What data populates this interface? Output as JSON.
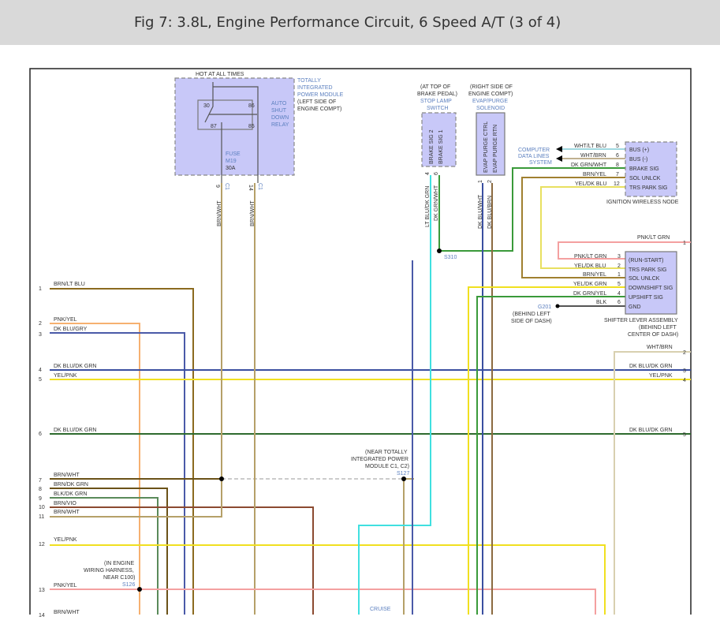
{
  "title": "Fig 7: 3.8L, Engine Performance Circuit, 6 Speed A/T (3 of 4)",
  "left_pins": [
    {
      "num": "1",
      "label": "BRN/LT BLU"
    },
    {
      "num": "2",
      "label": "PNK/YEL"
    },
    {
      "num": "3",
      "label": "DK BLU/GRY"
    },
    {
      "num": "4",
      "label": "DK BLU/DK GRN"
    },
    {
      "num": "5",
      "label": "YEL/PNK"
    },
    {
      "num": "6",
      "label": "DK BLU/DK GRN"
    },
    {
      "num": "7",
      "label": "BRN/WHT"
    },
    {
      "num": "8",
      "label": "BRN/DK GRN"
    },
    {
      "num": "9",
      "label": "BLK/DK GRN"
    },
    {
      "num": "10",
      "label": "BRN/VIO"
    },
    {
      "num": "11",
      "label": "BRN/WHT"
    },
    {
      "num": "12",
      "label": "YEL/PNK"
    },
    {
      "num": "13",
      "label": "PNK/YEL"
    },
    {
      "num": "14",
      "label": "BRN/WHT"
    }
  ],
  "right_pins": [
    {
      "num": "1",
      "label": "PNK/LT GRN"
    },
    {
      "num": "2",
      "label": "WHT/BRN"
    },
    {
      "num": "3",
      "label": "DK BLU/DK GRN"
    },
    {
      "num": "4",
      "label": "YEL/PNK"
    },
    {
      "num": "5",
      "label": "DK BLU/DK GRN"
    }
  ],
  "tipm": {
    "hot": "HOT AT ALL TIMES",
    "name": [
      "TOTALLY",
      "INTEGRATED",
      "POWER MODULE"
    ],
    "loc": [
      "(LEFT SIDE OF",
      "ENGINE COMPT)"
    ],
    "relay": [
      "AUTO",
      "SHUT",
      "DOWN",
      "RELAY"
    ],
    "pins": [
      "30",
      "86",
      "87",
      "85"
    ],
    "fuse": [
      "FUSE",
      "M19"
    ],
    "amps": "30A",
    "out": [
      {
        "num": "9",
        "conn": "C1",
        "wire": "BRN/WHT"
      },
      {
        "num": "14",
        "conn": "C1",
        "wire": "BRN/WHT"
      }
    ]
  },
  "stop_lamp": {
    "loc": [
      "(AT TOP OF",
      "BRAKE PEDAL)"
    ],
    "name": [
      "STOP LAMP",
      "SWITCH"
    ],
    "pins": [
      "BRAKE SIG 2",
      "BRAKE SIG 1"
    ],
    "nums": [
      "4",
      "6"
    ],
    "wires": [
      "LT BLU/DK GRN",
      "DK GRN/WHT"
    ]
  },
  "evap": {
    "loc": [
      "(RIGHT SIDE OF",
      "ENGINE COMPT)"
    ],
    "name": [
      "EVAP/PURGE",
      "SOLENOID"
    ],
    "pins": [
      "EVAP PURGE CTRL",
      "EVAP PURGE RTN"
    ],
    "nums": [
      "1",
      "2"
    ],
    "wires": [
      "DK BLU/WHT",
      "DK BLU/BRN"
    ]
  },
  "ign_node": {
    "name": "IGNITION WIRELESS NODE",
    "data_lines": [
      "COMPUTER",
      "DATA LINES",
      "SYSTEM"
    ],
    "pins": [
      {
        "num": "5",
        "wire": "WHT/LT BLU",
        "sig": "BUS (+)"
      },
      {
        "num": "6",
        "wire": "WHT/BRN",
        "sig": "BUS (-)"
      },
      {
        "num": "8",
        "wire": "DK GRN/WHT",
        "sig": "BRAKE SIG"
      },
      {
        "num": "7",
        "wire": "BRN/YEL",
        "sig": "SOL UNLCK"
      },
      {
        "num": "12",
        "wire": "YEL/DK BLU",
        "sig": "TRS PARK SIG"
      }
    ]
  },
  "shifter": {
    "name": [
      "SHIFTER LEVER ASSEMBLY",
      "(BEHIND LEFT",
      "CENTER OF DASH)"
    ],
    "pins": [
      {
        "num": "3",
        "wire": "PNK/LT GRN",
        "sig": "(RUN-START)"
      },
      {
        "num": "2",
        "wire": "YEL/DK BLU",
        "sig": "TRS PARK SIG"
      },
      {
        "num": "1",
        "wire": "BRN/YEL",
        "sig": "SOL UNLCK"
      },
      {
        "num": "5",
        "wire": "YEL/DK GRN",
        "sig": "DOWNSHIFT SIG"
      },
      {
        "num": "4",
        "wire": "DK GRN/YEL",
        "sig": "UPSHIFT SIG"
      },
      {
        "num": "6",
        "wire": "BLK",
        "sig": "GND"
      }
    ]
  },
  "ground": {
    "id": "G201",
    "loc": [
      "(BEHIND LEFT",
      "SIDE OF DASH)"
    ]
  },
  "splices": {
    "s310": "S310",
    "s127": "S127",
    "s127_loc": [
      "(NEAR TOTALLY",
      "INTEGRATED POWER",
      "MODULE C1, C2)"
    ],
    "s126": "S126",
    "s126_loc": [
      "(IN ENGINE",
      "WIRING HARNESS,",
      "NEAR C100)"
    ]
  },
  "cruise": "CRUISE",
  "colors": {
    "brown": "#8b6a1f",
    "tan": "#b5a068",
    "blue": "#4a5aa8",
    "yellow": "#f0e020",
    "green": "#3d8a3d",
    "pink": "#f4a0a0",
    "cyan": "#40e0e0"
  }
}
